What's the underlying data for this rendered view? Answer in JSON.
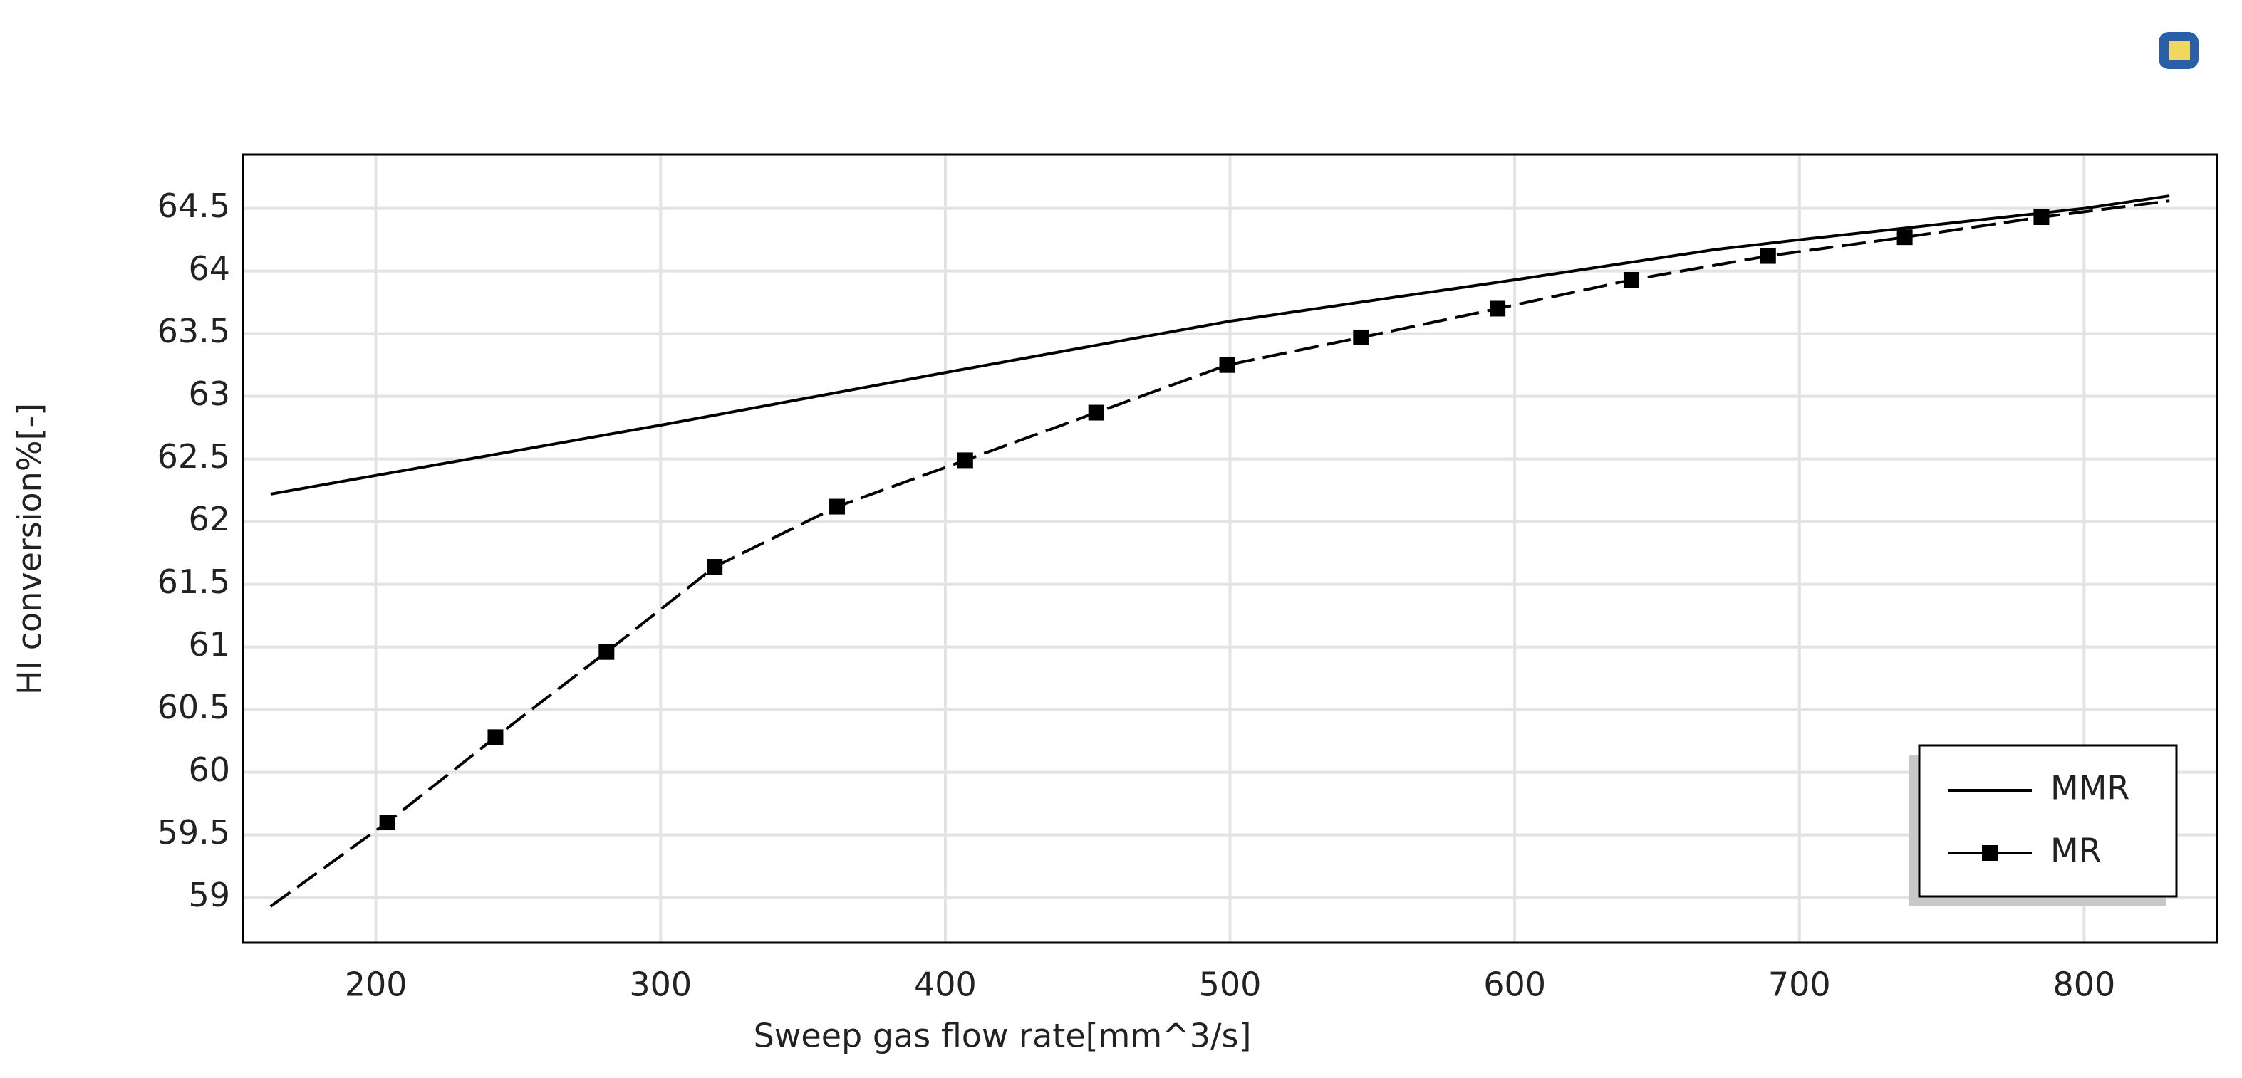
{
  "chart_data": {
    "type": "line",
    "x_label": "Sweep gas flow rate[mm^3/s]",
    "y_label": "HI conversion%[-]",
    "xlim": [
      153.3,
      846.7
    ],
    "ylim": [
      58.64,
      64.93
    ],
    "xticks": [
      200,
      300,
      400,
      500,
      600,
      700,
      800
    ],
    "yticks": [
      59,
      59.5,
      60,
      60.5,
      61,
      61.5,
      62,
      62.5,
      63,
      63.5,
      64,
      64.5
    ],
    "grid": true,
    "legend": "lower right",
    "series": [
      {
        "name": "MMR",
        "color": "#000000",
        "style": "solid",
        "x": [
          163,
          300,
          400,
          500,
          600,
          670,
          700,
          800,
          830
        ],
        "values": [
          62.22,
          62.77,
          63.19,
          63.6,
          63.93,
          64.17,
          64.25,
          64.5,
          64.6
        ]
      },
      {
        "name": "MR",
        "color": "#000000",
        "style": "dashed",
        "marker": "square",
        "x": [
          163,
          204,
          242,
          281,
          319,
          362,
          407,
          453,
          499,
          546,
          594,
          641,
          689,
          737,
          785,
          830
        ],
        "values": [
          58.93,
          59.6,
          60.28,
          60.96,
          61.64,
          62.12,
          62.49,
          62.87,
          63.25,
          63.47,
          63.7,
          63.93,
          64.12,
          64.27,
          64.43,
          64.56
        ]
      }
    ]
  }
}
